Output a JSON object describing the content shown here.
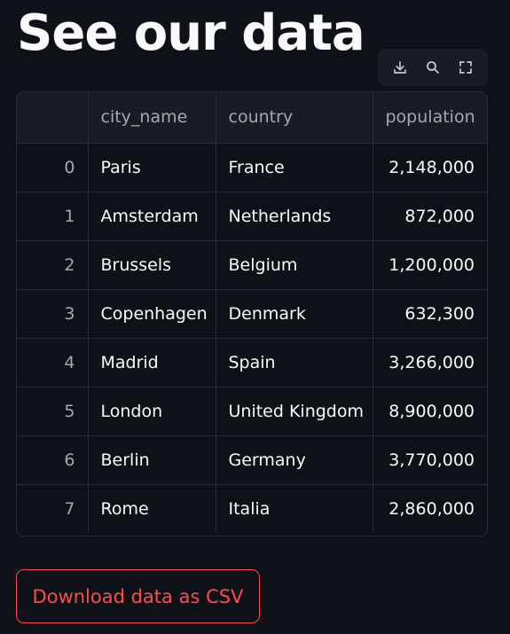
{
  "page": {
    "title": "See our data"
  },
  "toolbar": {
    "icons": [
      "download-icon",
      "search-icon",
      "fullscreen-icon"
    ],
    "icon_color": "#c5c8d2"
  },
  "table": {
    "columns": [
      "",
      "city_name",
      "country",
      "population"
    ],
    "rows": [
      {
        "index": "0",
        "city_name": "Paris",
        "country": "France",
        "population": "2,148,000"
      },
      {
        "index": "1",
        "city_name": "Amsterdam",
        "country": "Netherlands",
        "population": "872,000"
      },
      {
        "index": "2",
        "city_name": "Brussels",
        "country": "Belgium",
        "population": "1,200,000"
      },
      {
        "index": "3",
        "city_name": "Copenhagen",
        "country": "Denmark",
        "population": "632,300"
      },
      {
        "index": "4",
        "city_name": "Madrid",
        "country": "Spain",
        "population": "3,266,000"
      },
      {
        "index": "5",
        "city_name": "London",
        "country": "United Kingdom",
        "population": "8,900,000"
      },
      {
        "index": "6",
        "city_name": "Berlin",
        "country": "Germany",
        "population": "3,770,000"
      },
      {
        "index": "7",
        "city_name": "Rome",
        "country": "Italia",
        "population": "2,860,000"
      }
    ]
  },
  "download": {
    "label": "Download data as CSV",
    "color": "#ff4b4b"
  }
}
